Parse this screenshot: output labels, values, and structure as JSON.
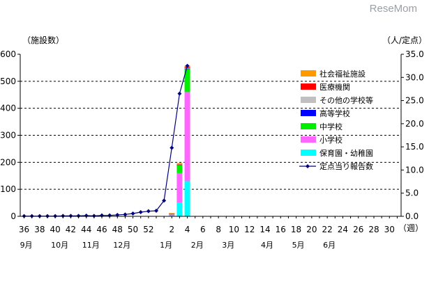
{
  "watermark": "ReseMom",
  "chart_data": {
    "type": "bar",
    "left_axis_title": "（施設数）",
    "right_axis_title": "（人/定点）",
    "week_unit_label": "（週）",
    "left_ticks": [
      "0",
      "100",
      "200",
      "300",
      "400",
      "500",
      "600"
    ],
    "left_ylim": [
      0,
      600
    ],
    "right_ticks": [
      "0.0",
      "5.0",
      "10.0",
      "15.0",
      "20.0",
      "25.0",
      "30.0",
      "35.0"
    ],
    "right_ylim": [
      0,
      35
    ],
    "weeks": [
      "36",
      "37",
      "38",
      "39",
      "40",
      "41",
      "42",
      "43",
      "44",
      "45",
      "46",
      "47",
      "48",
      "49",
      "50",
      "51",
      "52",
      "53",
      "1",
      "2",
      "3",
      "4",
      "5",
      "6",
      "7",
      "8",
      "9",
      "10",
      "11",
      "12",
      "13",
      "14",
      "15",
      "16",
      "17",
      "18",
      "19",
      "20",
      "21",
      "22",
      "23",
      "24",
      "25",
      "26",
      "27",
      "28",
      "29",
      "30",
      "31"
    ],
    "week_labels": [
      "36",
      "38",
      "40",
      "42",
      "44",
      "46",
      "48",
      "50",
      "52",
      "2",
      "4",
      "6",
      "8",
      "10",
      "12",
      "14",
      "16",
      "18",
      "20",
      "22",
      "24",
      "26",
      "28",
      "30"
    ],
    "months": [
      {
        "label": "9月",
        "week": "36"
      },
      {
        "label": "10月",
        "week": "40"
      },
      {
        "label": "11月",
        "week": "44"
      },
      {
        "label": "12月",
        "week": "48"
      },
      {
        "label": "1月",
        "week": "1"
      },
      {
        "label": "2月",
        "week": "5"
      },
      {
        "label": "3月",
        "week": "9"
      },
      {
        "label": "4月",
        "week": "14"
      },
      {
        "label": "5月",
        "week": "18"
      },
      {
        "label": "6月",
        "week": "22"
      }
    ],
    "bar_series": [
      {
        "name": "保育園・幼稚園",
        "color": "#00ffff",
        "values": {
          "1": 0,
          "2": 2,
          "3": 50,
          "4": 130
        }
      },
      {
        "name": "小学校",
        "color": "#ff66ff",
        "values": {
          "1": 0,
          "2": 5,
          "3": 110,
          "4": 330
        }
      },
      {
        "name": "中学校",
        "color": "#00ee00",
        "values": {
          "1": 0,
          "2": 3,
          "3": 30,
          "4": 85
        }
      },
      {
        "name": "高等学校",
        "color": "#0000ff",
        "values": {
          "1": 0,
          "2": 0,
          "3": 1,
          "4": 2
        }
      },
      {
        "name": "その他の学校等",
        "color": "#c0c0c0",
        "values": {
          "1": 0,
          "2": 0,
          "3": 1,
          "4": 2
        }
      },
      {
        "name": "医療機関",
        "color": "#ff0000",
        "values": {
          "1": 0,
          "2": 1,
          "3": 2,
          "4": 4
        }
      },
      {
        "name": "社会福祉施設",
        "color": "#ff9900",
        "values": {
          "1": 0,
          "2": 1,
          "3": 3,
          "4": 5
        }
      }
    ],
    "line_series": {
      "name": "定点当り報告数",
      "color": "#000080",
      "weeks": [
        "36",
        "37",
        "38",
        "39",
        "40",
        "41",
        "42",
        "43",
        "44",
        "45",
        "46",
        "47",
        "48",
        "49",
        "50",
        "51",
        "52",
        "53",
        "1",
        "2",
        "3",
        "4"
      ],
      "values": [
        0.05,
        0.05,
        0.05,
        0.05,
        0.05,
        0.1,
        0.1,
        0.1,
        0.15,
        0.1,
        0.2,
        0.2,
        0.3,
        0.4,
        0.6,
        0.9,
        1.1,
        1.2,
        3.4,
        14.8,
        26.5,
        32.5
      ]
    },
    "legend_order": [
      "社会福祉施設",
      "医療機関",
      "その他の学校等",
      "高等学校",
      "中学校",
      "小学校",
      "保育園・幼稚園",
      "定点当り報告数"
    ],
    "grid": true,
    "legend_position": "right"
  }
}
